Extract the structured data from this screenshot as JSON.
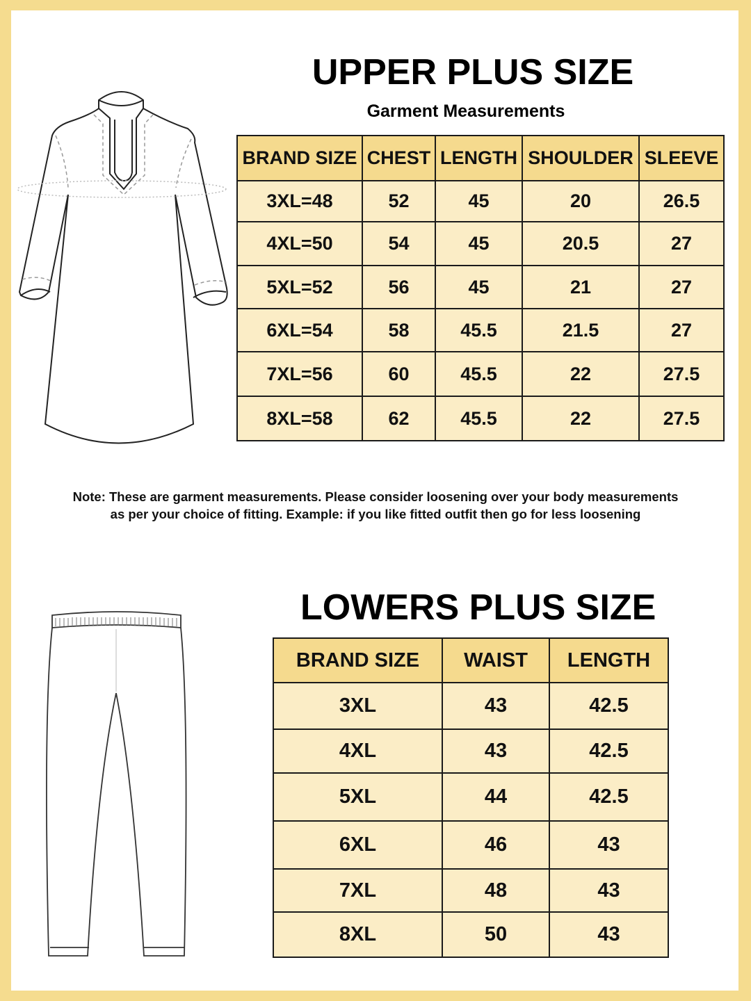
{
  "upper": {
    "title": "UPPER PLUS SIZE",
    "subtitle": "Garment Measurements",
    "headers": [
      "BRAND SIZE",
      "CHEST",
      "LENGTH",
      "SHOULDER",
      "SLEEVE"
    ],
    "rows": [
      [
        "3XL=48",
        "52",
        "45",
        "20",
        "26.5"
      ],
      [
        "4XL=50",
        "54",
        "45",
        "20.5",
        "27"
      ],
      [
        "5XL=52",
        "56",
        "45",
        "21",
        "27"
      ],
      [
        "6XL=54",
        "58",
        "45.5",
        "21.5",
        "27"
      ],
      [
        "7XL=56",
        "60",
        "45.5",
        "22",
        "27.5"
      ],
      [
        "8XL=58",
        "62",
        "45.5",
        "22",
        "27.5"
      ]
    ]
  },
  "note": {
    "line1": "Note: These are garment measurements. Please consider loosening over your body measurements",
    "line2": "as per your choice of fitting. Example: if you like fitted outfit then go for less loosening"
  },
  "lower": {
    "title": "LOWERS PLUS SIZE",
    "headers": [
      "BRAND SIZE",
      "WAIST",
      "LENGTH"
    ],
    "rows": [
      [
        "3XL",
        "43",
        "42.5"
      ],
      [
        "4XL",
        "43",
        "42.5"
      ],
      [
        "5XL",
        "44",
        "42.5"
      ],
      [
        "6XL",
        "46",
        "43"
      ],
      [
        "7XL",
        "48",
        "43"
      ],
      [
        "8XL",
        "50",
        "43"
      ]
    ]
  },
  "colors": {
    "frame": "#f5dc8f",
    "header": "#f5da8e",
    "cell": "#fbedc6"
  }
}
